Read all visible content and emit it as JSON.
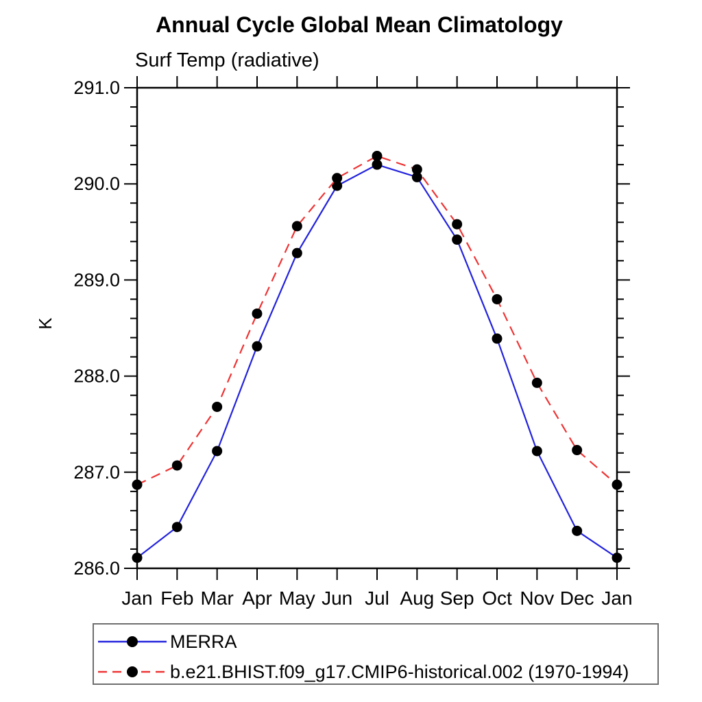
{
  "page": {
    "background": "#ffffff",
    "text_color": "#000000"
  },
  "chart_data": {
    "type": "line",
    "title": "Annual Cycle Global Mean Climatology",
    "subtitle": "Surf Temp (radiative)",
    "ylabel": "K",
    "x_categories": [
      "Jan",
      "Feb",
      "Mar",
      "Apr",
      "May",
      "Jun",
      "Jul",
      "Aug",
      "Sep",
      "Oct",
      "Nov",
      "Dec",
      "Jan"
    ],
    "y_axis": {
      "min": 286.0,
      "max": 291.0,
      "major_step": 1.0,
      "minor_step": 0.2,
      "tick_labels": [
        "286.0",
        "287.0",
        "288.0",
        "289.0",
        "290.0",
        "291.0"
      ]
    },
    "grid": false,
    "legend_position": "bottom-left",
    "series": [
      {
        "name": "MERRA",
        "color": "#2222dd",
        "line_style": "solid",
        "marker": "filled-circle",
        "marker_color": "#000000",
        "values": [
          286.11,
          286.43,
          287.22,
          288.31,
          289.28,
          289.98,
          290.2,
          290.07,
          289.42,
          288.39,
          287.22,
          286.39,
          286.11
        ]
      },
      {
        "name": "b.e21.BHIST.f09_g17.CMIP6-historical.002 (1970-1994)",
        "color": "#ee3333",
        "line_style": "dashed",
        "marker": "filled-circle",
        "marker_color": "#000000",
        "values": [
          286.87,
          287.07,
          287.68,
          288.65,
          289.56,
          290.06,
          290.29,
          290.15,
          289.58,
          288.8,
          287.93,
          287.23,
          286.87
        ]
      }
    ]
  }
}
